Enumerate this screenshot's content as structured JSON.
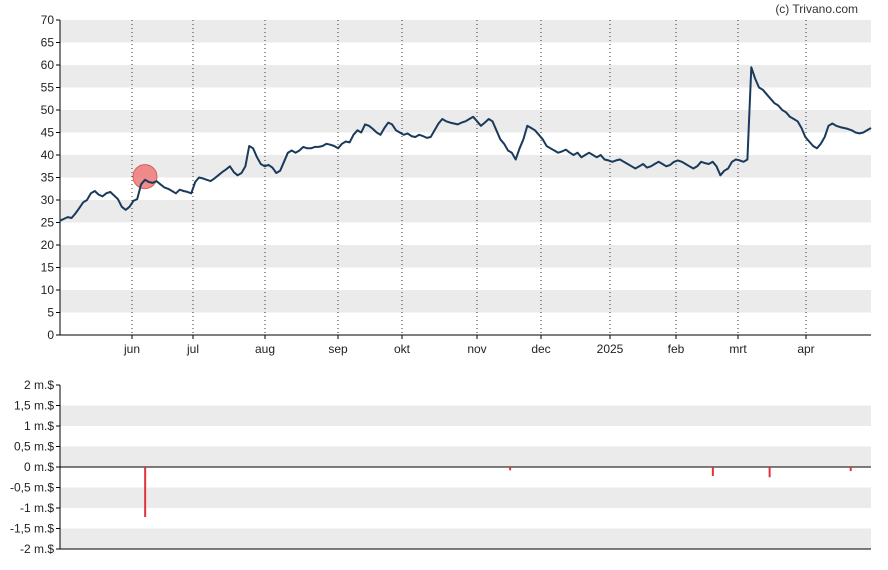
{
  "copyright": "(c) Trivano.com",
  "chart_data": [
    {
      "type": "line",
      "title": "",
      "xlabel": "",
      "ylabel": "",
      "ylim": [
        0,
        70
      ],
      "yticks": [
        "0",
        "5",
        "10",
        "15",
        "20",
        "25",
        "30",
        "35",
        "40",
        "45",
        "50",
        "55",
        "60",
        "65",
        "70"
      ],
      "x_tick_labels": [
        "jun",
        "jul",
        "aug",
        "sep",
        "okt",
        "nov",
        "dec",
        "2025",
        "feb",
        "mrt",
        "apr"
      ],
      "grid": "horizontal bands + vertical dotted lines at month boundaries",
      "series": [
        {
          "color": "#1a3a5c",
          "values": [
            25.4,
            25.8,
            26.2,
            26.0,
            27.0,
            28.2,
            29.5,
            30.0,
            31.5,
            32.0,
            31.2,
            30.8,
            31.5,
            31.8,
            31.0,
            30.2,
            28.5,
            27.8,
            28.5,
            29.8,
            30.2,
            33.5,
            34.5,
            34.0,
            33.8,
            34.2,
            33.5,
            32.8,
            32.5,
            32.0,
            31.5,
            32.3,
            32.0,
            31.8,
            31.5,
            34.0,
            35.0,
            34.8,
            34.5,
            34.2,
            34.8,
            35.5,
            36.2,
            36.8,
            37.5,
            36.2,
            35.5,
            36.0,
            37.5,
            42.0,
            41.5,
            39.5,
            38.0,
            37.5,
            37.8,
            37.2,
            36.0,
            36.5,
            38.5,
            40.5,
            41.0,
            40.5,
            41.0,
            41.8,
            41.5,
            41.5,
            41.8,
            41.8,
            42.0,
            42.5,
            42.3,
            42.0,
            41.5,
            42.5,
            43.0,
            42.8,
            44.5,
            45.5,
            45.0,
            46.8,
            46.5,
            45.8,
            45.0,
            44.5,
            46.0,
            47.2,
            46.8,
            45.5,
            45.0,
            44.5,
            44.8,
            44.2,
            44.0,
            44.5,
            44.2,
            43.8,
            44.0,
            45.5,
            47.0,
            48.0,
            47.5,
            47.2,
            47.0,
            46.8,
            47.2,
            47.5,
            48.0,
            48.5,
            47.5,
            46.5,
            47.2,
            48.0,
            47.5,
            45.5,
            43.5,
            42.5,
            41.0,
            40.5,
            39.0,
            41.5,
            43.5,
            46.5,
            46.0,
            45.5,
            44.5,
            43.5,
            42.0,
            41.5,
            41.0,
            40.5,
            40.8,
            41.2,
            40.5,
            40.0,
            40.5,
            39.5,
            40.0,
            40.5,
            40.0,
            39.5,
            40.0,
            39.0,
            38.8,
            38.5,
            38.8,
            39.0,
            38.5,
            38.0,
            37.5,
            37.0,
            37.5,
            38.0,
            37.2,
            37.5,
            38.0,
            38.5,
            38.0,
            37.5,
            37.8,
            38.5,
            38.8,
            38.5,
            38.0,
            37.5,
            37.0,
            37.5,
            38.5,
            38.2,
            38.0,
            38.5,
            37.5,
            35.5,
            36.5,
            37.0,
            38.5,
            39.0,
            38.8,
            38.5,
            39.0,
            59.5,
            57.0,
            55.0,
            54.5,
            53.5,
            52.5,
            51.5,
            51.0,
            50.0,
            49.5,
            48.5,
            48.0,
            47.5,
            46.0,
            44.0,
            43.0,
            42.0,
            41.5,
            42.5,
            44.0,
            46.5,
            47.0,
            46.5,
            46.2,
            46.0,
            45.8,
            45.5,
            45.0,
            44.8,
            45.0,
            45.5,
            46.0
          ]
        }
      ],
      "marker": {
        "index": 22,
        "value": 35.2,
        "color": "#f08080"
      }
    },
    {
      "type": "bar",
      "title": "",
      "xlabel": "",
      "ylabel": "",
      "ylim": [
        -2,
        2
      ],
      "yticks": [
        "-2 m.$",
        "-1,5 m.$",
        "-1 m.$",
        "-0,5 m.$",
        "0 m.$",
        "0,5 m.$",
        "1 m.$",
        "1,5 m.$",
        "2 m.$"
      ],
      "series": [
        {
          "color": "#e0333c",
          "bars": [
            {
              "x_frac": 0.105,
              "value": -1.22
            },
            {
              "x_frac": 0.555,
              "value": -0.08
            },
            {
              "x_frac": 0.805,
              "value": -0.22
            },
            {
              "x_frac": 0.875,
              "value": -0.25
            },
            {
              "x_frac": 0.975,
              "value": -0.1
            }
          ]
        }
      ]
    }
  ]
}
